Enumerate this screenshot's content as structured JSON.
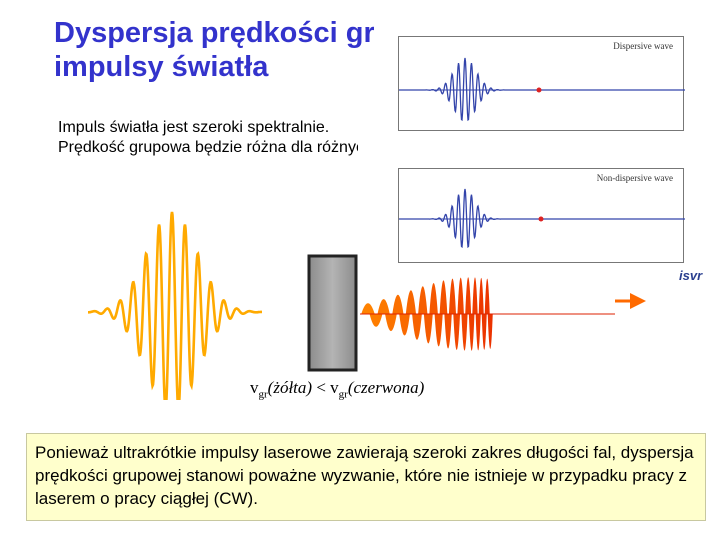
{
  "title": {
    "line1": "Dyspersja prędkości grupowej:",
    "line2": "impulsy światła"
  },
  "body": {
    "line1": "Impuls światła jest szeroki spektralnie.",
    "line2": "Prędkość grupowa będzie różna dla różnych długości fal."
  },
  "wave_panels": [
    {
      "caption": "Dispersive wave"
    },
    {
      "caption": "Non-dispersive wave"
    }
  ],
  "logo_text": "isvr",
  "formula": {
    "v1": "v",
    "sub1": "gr",
    "arg1": "(żółta)",
    "op": " < ",
    "v2": "v",
    "sub2": "gr",
    "arg2": "(czerwona)"
  },
  "note": "Ponieważ ultrakrótkie impulsy laserowe zawierają szeroki zakres długości fal, dyspersja prędkości grupowej stanowi poważne wyzwanie, które nie istnieje w przypadku pracy z laserem o pracy ciągłej (CW).",
  "colors": {
    "title": "#3333cc",
    "wave": "#3344aa",
    "marker": "#dd2222",
    "pulse_yellow": "#ffaa00",
    "pulse_red": "#dd2200",
    "medium_block": "#999999",
    "note_bg": "#ffffcc"
  }
}
